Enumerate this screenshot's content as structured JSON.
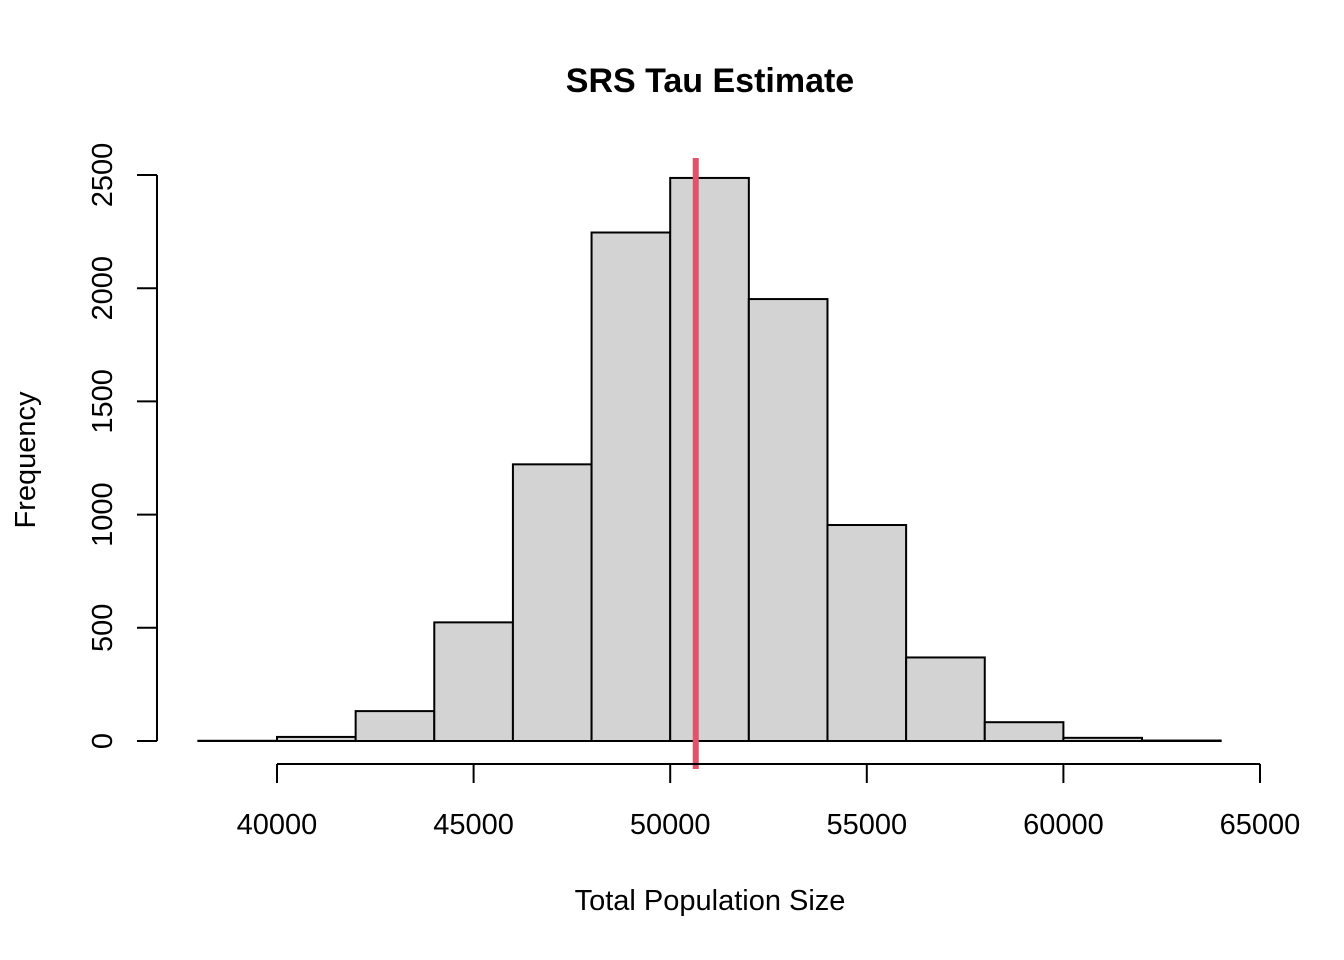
{
  "chart_data": {
    "type": "bar",
    "title": "SRS Tau Estimate",
    "xlabel": "Total Population Size",
    "ylabel": "Frequency",
    "bins": [
      {
        "from": 38000,
        "to": 40000,
        "count": 1
      },
      {
        "from": 40000,
        "to": 42000,
        "count": 18
      },
      {
        "from": 42000,
        "to": 44000,
        "count": 132
      },
      {
        "from": 44000,
        "to": 46000,
        "count": 524
      },
      {
        "from": 46000,
        "to": 48000,
        "count": 1222
      },
      {
        "from": 48000,
        "to": 50000,
        "count": 2246
      },
      {
        "from": 50000,
        "to": 52000,
        "count": 2487
      },
      {
        "from": 52000,
        "to": 54000,
        "count": 1952
      },
      {
        "from": 54000,
        "to": 56000,
        "count": 954
      },
      {
        "from": 56000,
        "to": 58000,
        "count": 369
      },
      {
        "from": 58000,
        "to": 60000,
        "count": 83
      },
      {
        "from": 60000,
        "to": 62000,
        "count": 14
      },
      {
        "from": 62000,
        "to": 64000,
        "count": 2
      }
    ],
    "xlim": [
      38000,
      64000
    ],
    "ylim": [
      0,
      2500
    ],
    "x_ticks": [
      40000,
      45000,
      50000,
      55000,
      60000,
      65000
    ],
    "x_tick_labels": [
      "40000",
      "45000",
      "50000",
      "55000",
      "60000",
      "65000"
    ],
    "y_ticks": [
      0,
      500,
      1000,
      1500,
      2000,
      2500
    ],
    "y_tick_labels": [
      "0",
      "500",
      "1000",
      "1500",
      "2000",
      "2500"
    ],
    "reference_line": {
      "x": 50650,
      "color": "#df536b"
    },
    "bar_color": "#d3d3d3",
    "grid": false
  }
}
